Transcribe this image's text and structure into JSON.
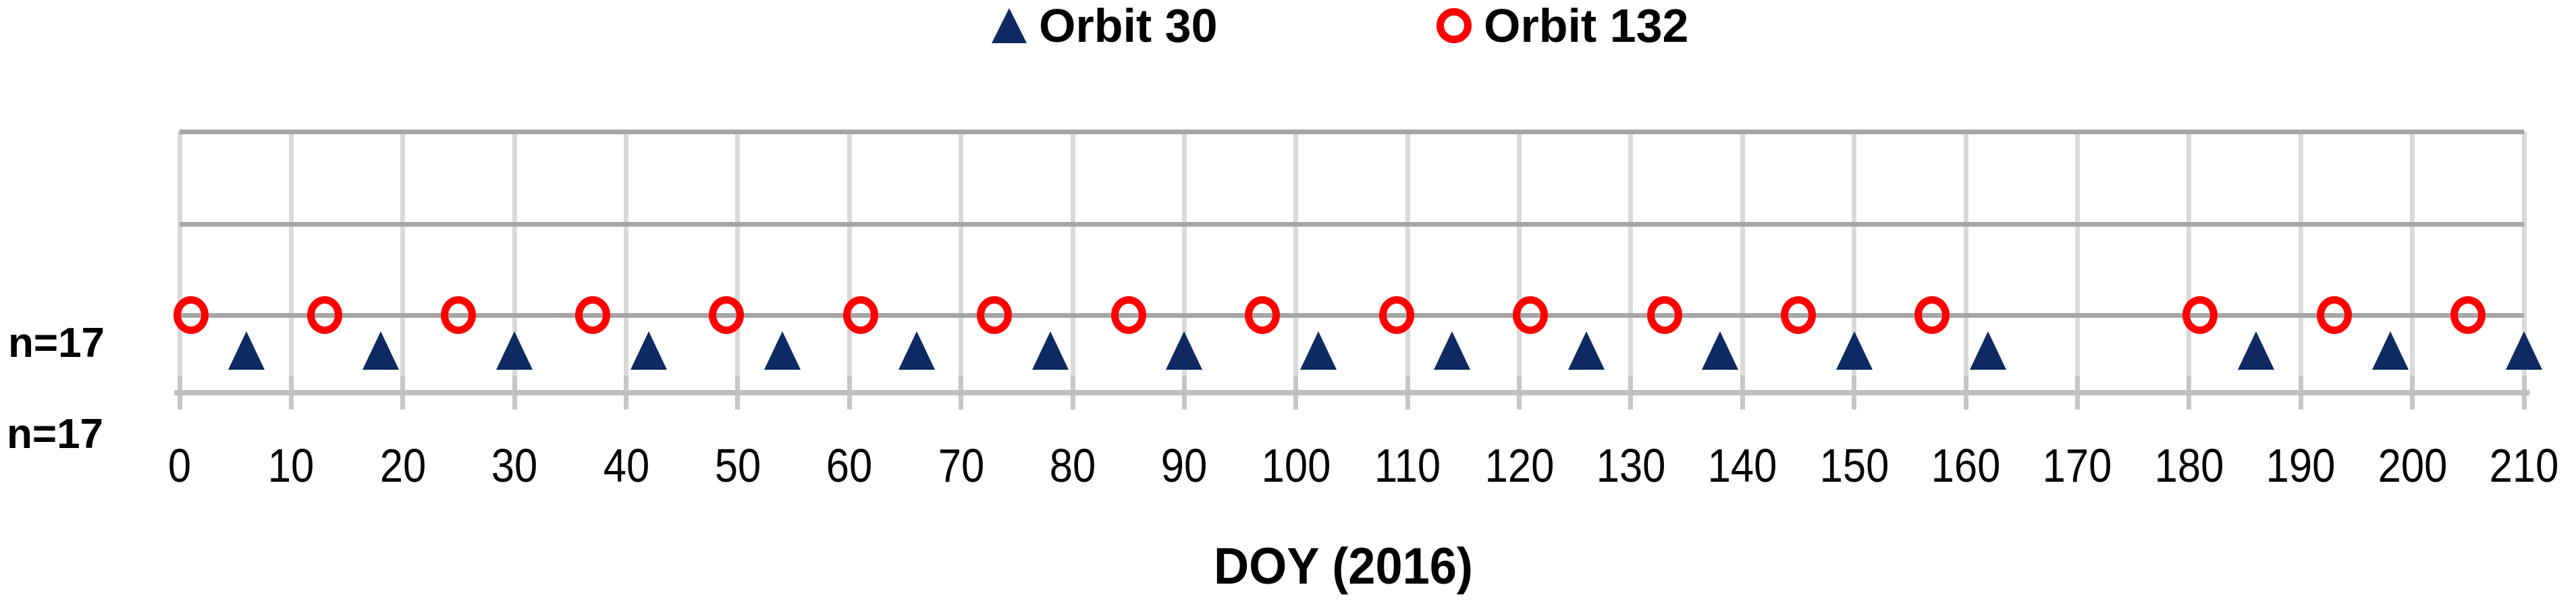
{
  "page": {
    "background": "#ffffff"
  },
  "legend": {
    "position": "top-center",
    "items": [
      {
        "label": "Orbit 30",
        "marker": "filled-triangle",
        "color": "#0e2a63"
      },
      {
        "label": "Orbit 132",
        "marker": "open-circle",
        "color": "#fe0000"
      }
    ]
  },
  "annotations": [
    {
      "text": "n=17"
    },
    {
      "text": "n=17"
    }
  ],
  "chart_data": {
    "type": "scatter",
    "title": "",
    "xlabel": "DOY (2016)",
    "ylabel": "",
    "xlim": [
      0,
      210
    ],
    "x_tick_interval": 10,
    "x_ticks": [
      0,
      10,
      20,
      30,
      40,
      50,
      60,
      70,
      80,
      90,
      100,
      110,
      120,
      130,
      140,
      150,
      160,
      170,
      180,
      190,
      200,
      210
    ],
    "grid": true,
    "legend_position": "top-center",
    "series": [
      {
        "name": "Orbit 30",
        "marker": "filled-triangle",
        "color": "#0e2a63",
        "count_label": "n=17",
        "x": [
          6,
          18,
          30,
          42,
          54,
          66,
          78,
          90,
          102,
          114,
          126,
          138,
          150,
          162,
          186,
          198,
          210
        ]
      },
      {
        "name": "Orbit 132",
        "marker": "open-circle",
        "color": "#fe0000",
        "count_label": "n=17",
        "x": [
          1,
          13,
          25,
          37,
          49,
          61,
          73,
          85,
          97,
          109,
          121,
          133,
          145,
          157,
          181,
          193,
          205
        ]
      }
    ],
    "colors": {
      "h_gridline": "#a6a6a6",
      "v_gridline": "#d9d9d9",
      "axis_line": "#bfbfbf",
      "tick": "#c6c6c6",
      "text": "#000000"
    }
  }
}
